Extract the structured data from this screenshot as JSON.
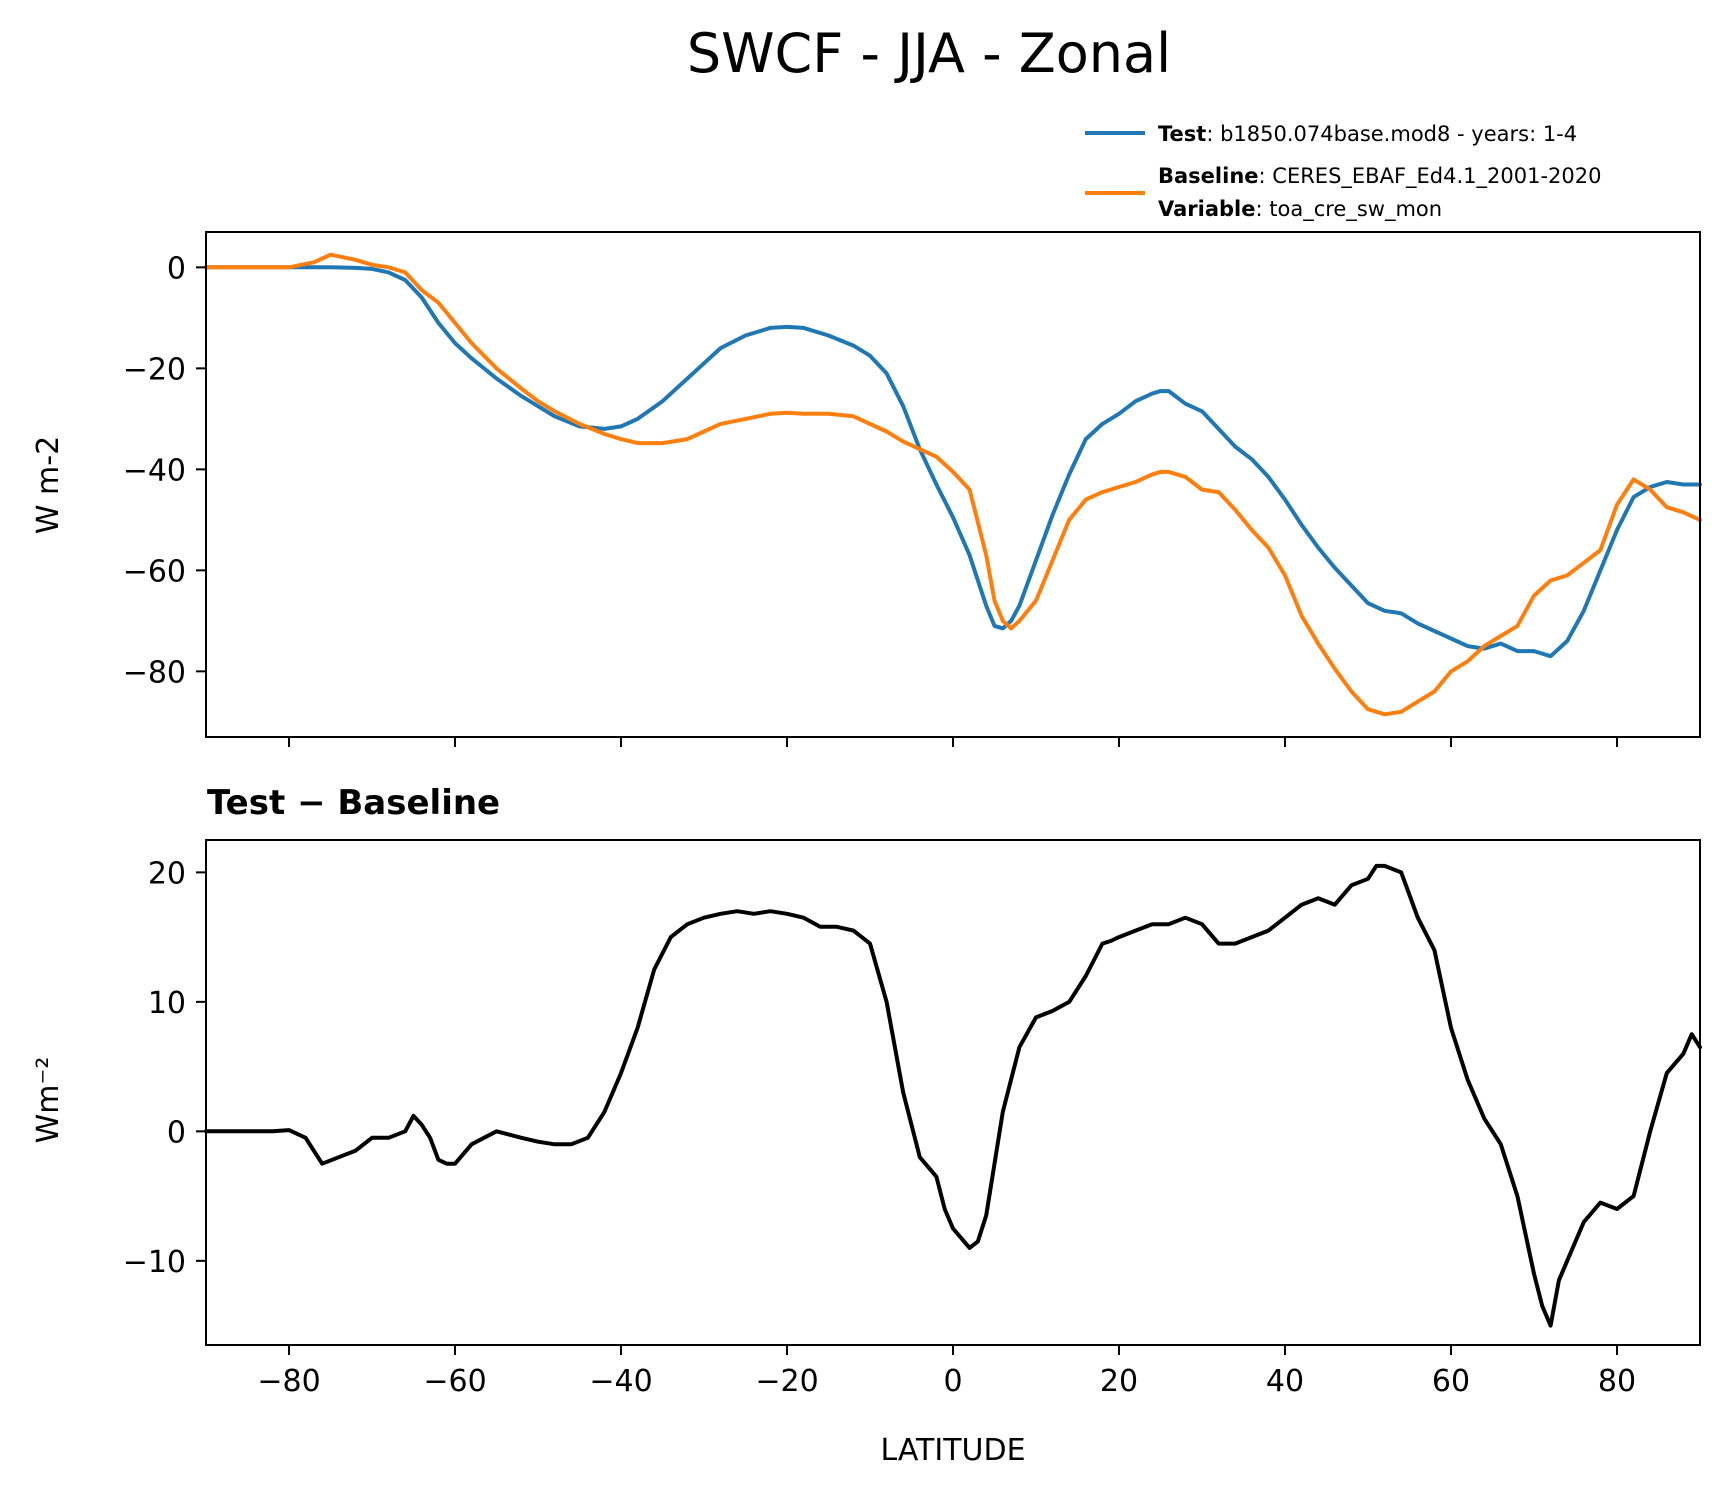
{
  "figure_title": "SWCF - JJA - Zonal",
  "legend": {
    "test": {
      "key": "Test",
      "value": "b1850.074base.mod8 - years: 1-4",
      "color": "#1f77b4"
    },
    "baseline": {
      "key": "Baseline",
      "value": "CERES_EBAF_Ed4.1_2001-2020",
      "color": "#ff7f0e"
    },
    "variable": {
      "key": "Variable",
      "value": "toa_cre_sw_mon"
    }
  },
  "chart_data": [
    {
      "type": "line",
      "title": "",
      "xlabel": "",
      "ylabel": "W m-2",
      "xlim": [
        -90,
        90
      ],
      "ylim": [
        -93,
        7
      ],
      "yticks": [
        0,
        -20,
        -40,
        -60,
        -80
      ],
      "ytick_labels": [
        "0",
        "−20",
        "−40",
        "−60",
        "−80"
      ],
      "x": [
        -90,
        -85,
        -80,
        -77,
        -75,
        -72,
        -70,
        -68,
        -66,
        -64,
        -62,
        -60,
        -58,
        -55,
        -52,
        -50,
        -48,
        -45,
        -42,
        -40,
        -38,
        -35,
        -32,
        -30,
        -28,
        -25,
        -22,
        -20,
        -18,
        -15,
        -12,
        -10,
        -8,
        -6,
        -4,
        -2,
        0,
        2,
        4,
        5,
        6,
        7,
        8,
        10,
        12,
        14,
        16,
        18,
        20,
        22,
        24,
        25,
        26,
        28,
        30,
        32,
        34,
        36,
        38,
        40,
        42,
        44,
        46,
        48,
        50,
        52,
        54,
        56,
        58,
        60,
        62,
        64,
        66,
        68,
        70,
        72,
        74,
        76,
        78,
        80,
        82,
        84,
        86,
        88,
        90
      ],
      "series": [
        {
          "name": "Test",
          "color": "#1f77b4",
          "values": [
            0,
            0,
            0,
            0,
            0,
            -0.1,
            -0.3,
            -1,
            -2.5,
            -6,
            -11,
            -15,
            -18,
            -22,
            -25.5,
            -27.5,
            -29.5,
            -31.5,
            -32,
            -31.5,
            -30,
            -26.5,
            -22,
            -19,
            -16,
            -13.5,
            -12,
            -11.8,
            -12,
            -13.5,
            -15.5,
            -17.5,
            -21,
            -27.5,
            -36,
            -43,
            -49.5,
            -57,
            -67,
            -71,
            -71.5,
            -70,
            -67,
            -58,
            -49,
            -41,
            -34,
            -31,
            -29,
            -26.5,
            -25,
            -24.5,
            -24.5,
            -27,
            -28.5,
            -32,
            -35.5,
            -38,
            -41.5,
            -46,
            -51,
            -55.5,
            -59.5,
            -63,
            -66.5,
            -68,
            -68.5,
            -70.5,
            -72,
            -73.5,
            -75,
            -75.5,
            -74.5,
            -76,
            -76,
            -77,
            -74,
            -68,
            -60,
            -52,
            -45.5,
            -43.5,
            -42.5,
            -43,
            -43
          ]
        },
        {
          "name": "Baseline",
          "color": "#ff7f0e",
          "values": [
            0,
            0,
            0,
            1,
            2.5,
            1.5,
            0.5,
            0,
            -1,
            -4.5,
            -7,
            -11,
            -15,
            -20,
            -24,
            -26.5,
            -28.5,
            -31,
            -33,
            -34,
            -34.8,
            -34.8,
            -34,
            -32.5,
            -31,
            -30,
            -29,
            -28.8,
            -29,
            -29,
            -29.5,
            -31,
            -32.5,
            -34.5,
            -36,
            -37.5,
            -40.5,
            -44,
            -57,
            -66,
            -70,
            -71.5,
            -70,
            -66,
            -58,
            -50,
            -46,
            -44.5,
            -43.5,
            -42.5,
            -41,
            -40.5,
            -40.5,
            -41.5,
            -44,
            -44.5,
            -48,
            -52,
            -55.5,
            -61,
            -69,
            -74.5,
            -79.5,
            -84,
            -87.5,
            -88.5,
            -88,
            -86,
            -84,
            -80,
            -78,
            -75,
            -73,
            -71,
            -65,
            -62,
            -61,
            -58.5,
            -56,
            -47,
            -42,
            -44,
            -47.5,
            -48.5,
            -50
          ]
        }
      ]
    },
    {
      "type": "line",
      "title": "Test − Baseline",
      "xlabel": "LATITUDE",
      "ylabel": "Wm⁻²",
      "xlim": [
        -90,
        90
      ],
      "ylim": [
        -16.5,
        22.5
      ],
      "yticks": [
        20,
        10,
        0,
        -10
      ],
      "ytick_labels": [
        "20",
        "10",
        "0",
        "−10"
      ],
      "xticks": [
        -80,
        -60,
        -40,
        -20,
        0,
        20,
        40,
        60,
        80
      ],
      "xtick_labels": [
        "−80",
        "−60",
        "−40",
        "−20",
        "0",
        "20",
        "40",
        "60",
        "80"
      ],
      "x": [
        -90,
        -85,
        -82,
        -80,
        -78,
        -77,
        -76,
        -74,
        -72,
        -70,
        -68,
        -66,
        -65,
        -64,
        -63,
        -62,
        -61,
        -60,
        -58,
        -55,
        -52,
        -50,
        -48,
        -46,
        -44,
        -42,
        -40,
        -38,
        -36,
        -34,
        -32,
        -30,
        -28,
        -26,
        -24,
        -22,
        -20,
        -18,
        -16,
        -14,
        -12,
        -10,
        -8,
        -6,
        -4,
        -2,
        -1,
        0,
        2,
        3,
        4,
        6,
        8,
        10,
        12,
        14,
        16,
        18,
        19,
        20,
        22,
        24,
        26,
        28,
        30,
        32,
        34,
        36,
        38,
        40,
        42,
        44,
        46,
        48,
        50,
        51,
        52,
        54,
        56,
        58,
        60,
        62,
        64,
        66,
        68,
        70,
        71,
        72,
        73,
        74,
        76,
        78,
        80,
        82,
        84,
        86,
        88,
        89,
        90
      ],
      "series": [
        {
          "name": "Test − Baseline",
          "color": "#000000",
          "values": [
            0,
            0,
            0,
            0.1,
            -0.5,
            -1.5,
            -2.5,
            -2,
            -1.5,
            -0.5,
            -0.5,
            0,
            1.2,
            0.5,
            -0.5,
            -2.2,
            -2.5,
            -2.5,
            -1,
            0,
            -0.5,
            -0.8,
            -1,
            -1,
            -0.5,
            1.5,
            4.5,
            8,
            12.5,
            15,
            16,
            16.5,
            16.8,
            17,
            16.8,
            17,
            16.8,
            16.5,
            15.8,
            15.8,
            15.5,
            14.5,
            10,
            3,
            -2,
            -3.5,
            -6,
            -7.5,
            -9,
            -8.5,
            -6.5,
            1.5,
            6.5,
            8.8,
            9.3,
            10,
            12,
            14.5,
            14.7,
            15,
            15.5,
            16,
            16,
            16.5,
            16,
            14.5,
            14.5,
            15,
            15.5,
            16.5,
            17.5,
            18,
            17.5,
            19,
            19.5,
            20.5,
            20.5,
            20,
            16.5,
            14,
            8,
            4,
            1,
            -1,
            -5,
            -11,
            -13.5,
            -15,
            -11.5,
            -10,
            -7,
            -5.5,
            -6,
            -5,
            0,
            4.5,
            6,
            7.5,
            6.5
          ]
        }
      ]
    }
  ]
}
